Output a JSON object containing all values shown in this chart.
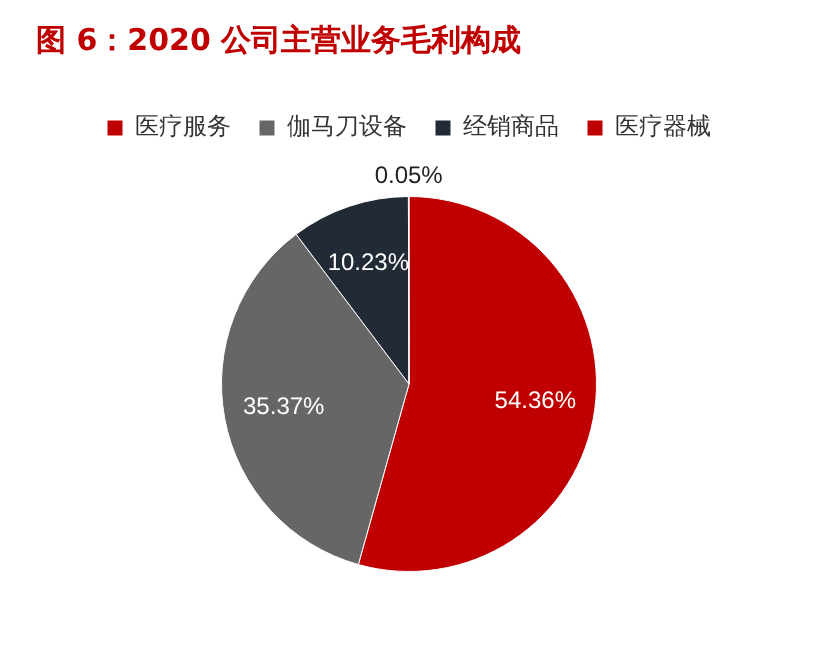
{
  "chart_data": {
    "type": "pie",
    "title": "图 6：2020 公司主营业务毛利构成",
    "categories": [
      "医疗服务",
      "伽马刀设备",
      "经销商品",
      "医疗器械"
    ],
    "values": [
      54.36,
      35.37,
      10.23,
      0.05
    ],
    "colors": [
      "#c00000",
      "#666666",
      "#222a35",
      "#c00000"
    ],
    "value_labels": [
      "54.36%",
      "35.37%",
      "10.23%",
      "0.05%"
    ],
    "legend": "top"
  }
}
